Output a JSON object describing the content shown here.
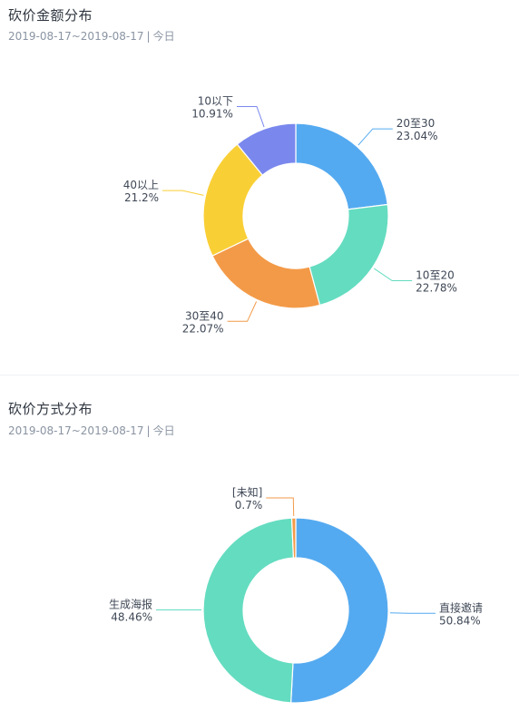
{
  "panels": [
    {
      "title": "砍价金额分布",
      "date_range": "2019-08-17~2019-08-17",
      "period": "今日"
    },
    {
      "title": "砍价方式分布",
      "date_range": "2019-08-17~2019-08-17",
      "period": "今日"
    }
  ],
  "chart_data": [
    {
      "type": "pie",
      "donut": true,
      "title": "砍价金额分布",
      "categories": [
        "20至30",
        "10至20",
        "30至40",
        "40以上",
        "10以下"
      ],
      "values": [
        23.04,
        22.78,
        22.07,
        21.2,
        10.91
      ],
      "labels": [
        "23.04%",
        "22.78%",
        "22.07%",
        "21.2%",
        "10.91%"
      ],
      "colors": [
        "#54aaf0",
        "#64dcc0",
        "#f39a48",
        "#f9cf36",
        "#7a88ee"
      ],
      "unit": "%",
      "legend": "none"
    },
    {
      "type": "pie",
      "donut": true,
      "title": "砍价方式分布",
      "categories": [
        "直接邀请",
        "生成海报",
        "[未知]"
      ],
      "values": [
        50.84,
        48.46,
        0.7
      ],
      "labels": [
        "50.84%",
        "48.46%",
        "0.7%"
      ],
      "colors": [
        "#54aaf0",
        "#64dcc0",
        "#f39a48"
      ],
      "unit": "%",
      "legend": "none"
    }
  ]
}
